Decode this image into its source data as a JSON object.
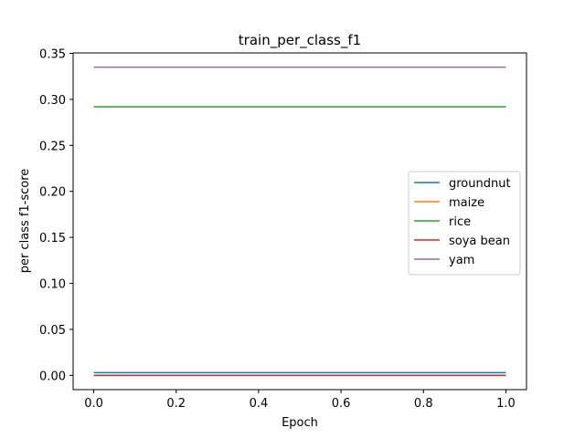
{
  "chart_data": {
    "type": "line",
    "title": "train_per_class_f1",
    "xlabel": "Epoch",
    "ylabel": "per class f1-score",
    "x": [
      0.0,
      1.0
    ],
    "xlim": [
      -0.05,
      1.05
    ],
    "ylim": [
      -0.0155,
      0.3505
    ],
    "xticks": [
      0.0,
      0.2,
      0.4,
      0.6,
      0.8,
      1.0
    ],
    "xtick_labels": [
      "0.0",
      "0.2",
      "0.4",
      "0.6",
      "0.8",
      "1.0"
    ],
    "yticks": [
      0.0,
      0.05,
      0.1,
      0.15,
      0.2,
      0.25,
      0.3,
      0.35
    ],
    "ytick_labels": [
      "0.00",
      "0.05",
      "0.10",
      "0.15",
      "0.20",
      "0.25",
      "0.30",
      "0.35"
    ],
    "grid": false,
    "legend_position": "center-right",
    "series": [
      {
        "name": "groundnut",
        "color": "#1f77b4",
        "values": [
          0.003,
          0.003
        ]
      },
      {
        "name": "maize",
        "color": "#ff7f0e",
        "values": [
          0.0,
          0.0
        ]
      },
      {
        "name": "rice",
        "color": "#2ca02c",
        "values": [
          0.292,
          0.292
        ]
      },
      {
        "name": "soya bean",
        "color": "#d62728",
        "values": [
          0.0,
          0.0
        ]
      },
      {
        "name": "yam",
        "color": "#9467bd",
        "values": [
          0.335,
          0.335
        ]
      }
    ]
  }
}
